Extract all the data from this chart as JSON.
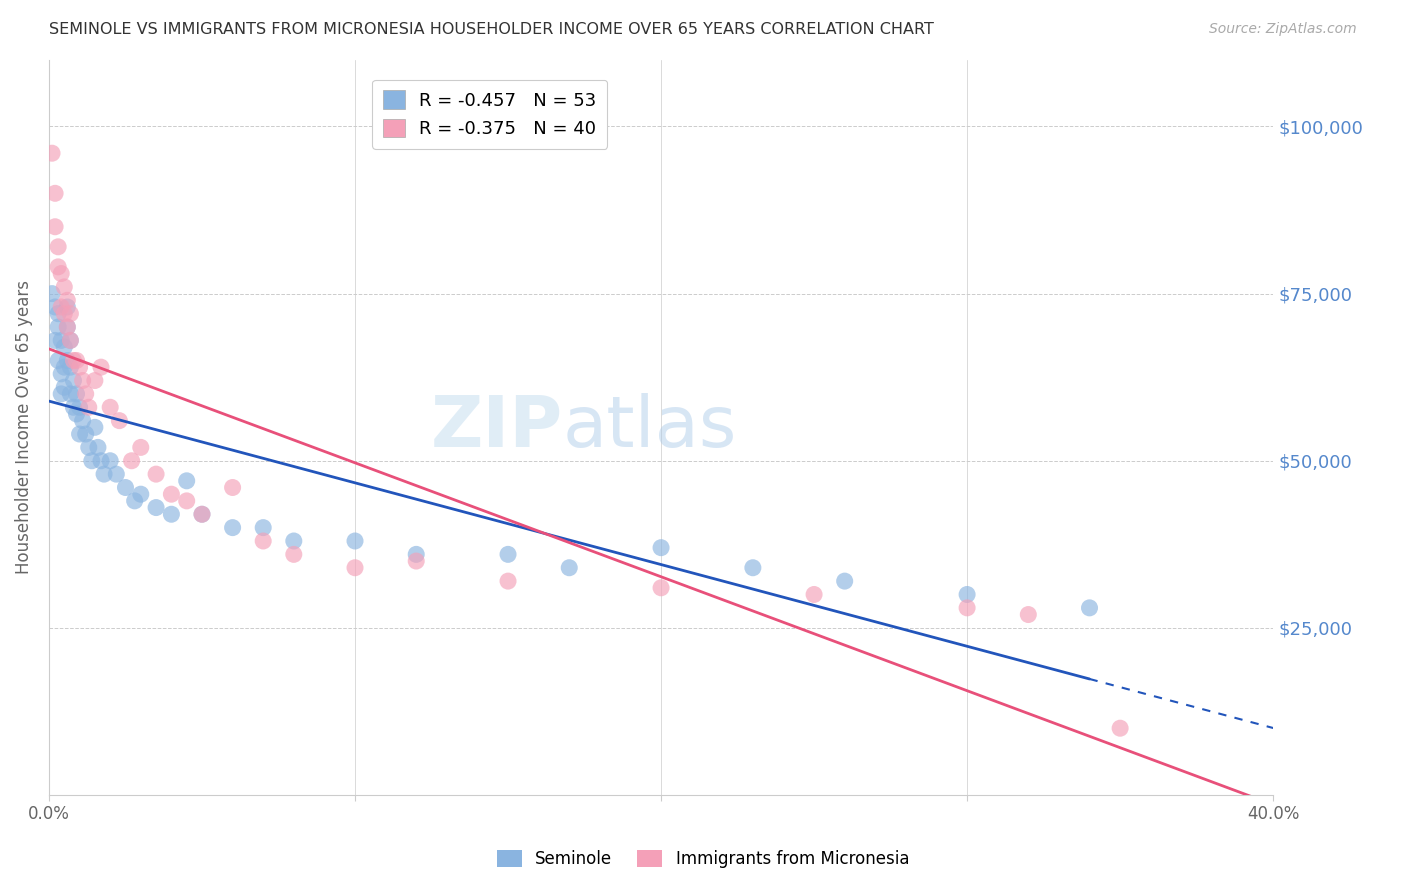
{
  "title": "SEMINOLE VS IMMIGRANTS FROM MICRONESIA HOUSEHOLDER INCOME OVER 65 YEARS CORRELATION CHART",
  "source": "Source: ZipAtlas.com",
  "ylabel": "Householder Income Over 65 years",
  "xlim": [
    0.0,
    0.4
  ],
  "ylim": [
    0,
    110000
  ],
  "yticks": [
    0,
    25000,
    50000,
    75000,
    100000
  ],
  "ytick_labels": [
    "",
    "$25,000",
    "$50,000",
    "$75,000",
    "$100,000"
  ],
  "seminole_color": "#8ab4e0",
  "micronesia_color": "#f4a0b8",
  "line_seminole_color": "#2255bb",
  "line_micronesia_color": "#e8507a",
  "background_color": "#ffffff",
  "grid_color": "#cccccc",
  "title_color": "#404040",
  "right_tick_color": "#5588cc",
  "R_seminole": -0.457,
  "N_seminole": 53,
  "R_micronesia": -0.375,
  "N_micronesia": 40,
  "seminole_x": [
    0.001,
    0.002,
    0.002,
    0.003,
    0.003,
    0.003,
    0.004,
    0.004,
    0.004,
    0.005,
    0.005,
    0.005,
    0.006,
    0.006,
    0.006,
    0.007,
    0.007,
    0.007,
    0.008,
    0.008,
    0.009,
    0.009,
    0.01,
    0.01,
    0.011,
    0.012,
    0.013,
    0.014,
    0.015,
    0.016,
    0.017,
    0.018,
    0.02,
    0.022,
    0.025,
    0.028,
    0.03,
    0.035,
    0.04,
    0.045,
    0.05,
    0.06,
    0.07,
    0.08,
    0.1,
    0.12,
    0.15,
    0.17,
    0.2,
    0.23,
    0.26,
    0.3,
    0.34
  ],
  "seminole_y": [
    75000,
    73000,
    68000,
    72000,
    70000,
    65000,
    68000,
    63000,
    60000,
    67000,
    64000,
    61000,
    73000,
    70000,
    65000,
    68000,
    64000,
    60000,
    62000,
    58000,
    60000,
    57000,
    58000,
    54000,
    56000,
    54000,
    52000,
    50000,
    55000,
    52000,
    50000,
    48000,
    50000,
    48000,
    46000,
    44000,
    45000,
    43000,
    42000,
    47000,
    42000,
    40000,
    40000,
    38000,
    38000,
    36000,
    36000,
    34000,
    37000,
    34000,
    32000,
    30000,
    28000
  ],
  "micronesia_x": [
    0.001,
    0.002,
    0.003,
    0.003,
    0.004,
    0.004,
    0.005,
    0.005,
    0.006,
    0.006,
    0.007,
    0.007,
    0.008,
    0.009,
    0.01,
    0.011,
    0.012,
    0.013,
    0.015,
    0.017,
    0.02,
    0.023,
    0.027,
    0.03,
    0.035,
    0.04,
    0.045,
    0.05,
    0.06,
    0.07,
    0.08,
    0.1,
    0.12,
    0.15,
    0.2,
    0.25,
    0.3,
    0.32,
    0.35,
    0.002
  ],
  "micronesia_y": [
    96000,
    85000,
    82000,
    79000,
    78000,
    73000,
    76000,
    72000,
    74000,
    70000,
    72000,
    68000,
    65000,
    65000,
    64000,
    62000,
    60000,
    58000,
    62000,
    64000,
    58000,
    56000,
    50000,
    52000,
    48000,
    45000,
    44000,
    42000,
    46000,
    38000,
    36000,
    34000,
    35000,
    32000,
    31000,
    30000,
    28000,
    27000,
    10000,
    90000
  ]
}
